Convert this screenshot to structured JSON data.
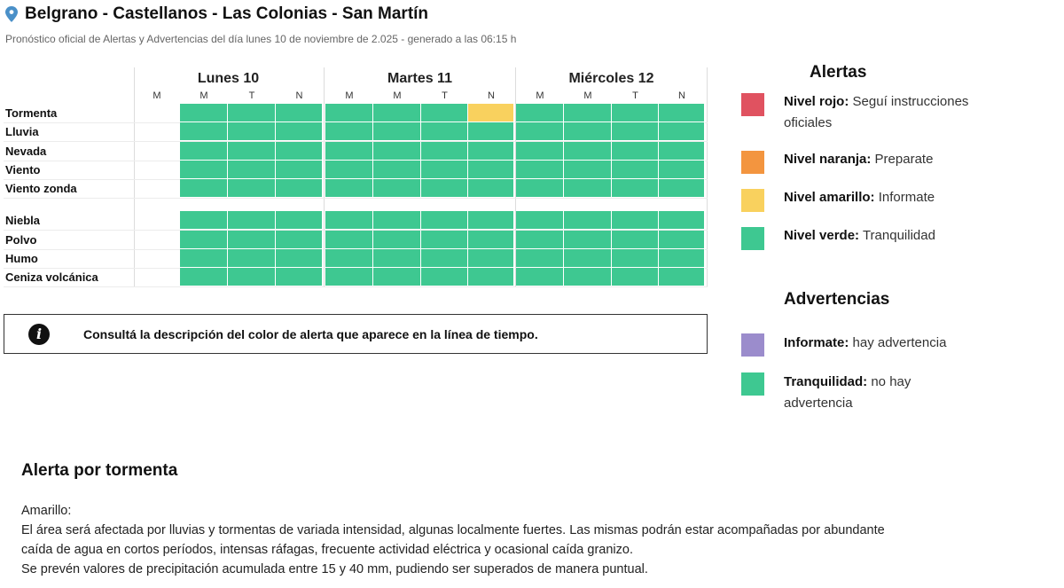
{
  "header": {
    "title": "Belgrano - Castellanos - Las Colonias - San Martín",
    "subtitle": "Pronóstico oficial de Alertas y Advertencias del día lunes 10 de noviembre de 2.025 - generado a las 06:15 h",
    "pin_icon": "map-pin-icon"
  },
  "timeline": {
    "days": [
      {
        "label": "Lunes 10",
        "slots": [
          "M",
          "M",
          "T",
          "N"
        ]
      },
      {
        "label": "Martes 11",
        "slots": [
          "M",
          "M",
          "T",
          "N"
        ]
      },
      {
        "label": "Miércoles 12",
        "slots": [
          "M",
          "M",
          "T",
          "N"
        ]
      }
    ],
    "rows": [
      {
        "label": "Tormenta",
        "levels": [
          "",
          "green",
          "green",
          "green",
          "green",
          "green",
          "green",
          "yellow",
          "green",
          "green",
          "green",
          "green"
        ]
      },
      {
        "label": "Lluvia",
        "levels": [
          "",
          "green",
          "green",
          "green",
          "green",
          "green",
          "green",
          "green",
          "green",
          "green",
          "green",
          "green"
        ]
      },
      {
        "label": "Nevada",
        "levels": [
          "",
          "green",
          "green",
          "green",
          "green",
          "green",
          "green",
          "green",
          "green",
          "green",
          "green",
          "green"
        ]
      },
      {
        "label": "Viento",
        "levels": [
          "",
          "green",
          "green",
          "green",
          "green",
          "green",
          "green",
          "green",
          "green",
          "green",
          "green",
          "green"
        ]
      },
      {
        "label": "Viento zonda",
        "levels": [
          "",
          "green",
          "green",
          "green",
          "green",
          "green",
          "green",
          "green",
          "green",
          "green",
          "green",
          "green"
        ]
      },
      {
        "label": "Niebla",
        "levels": [
          "",
          "green",
          "green",
          "green",
          "green",
          "green",
          "green",
          "green",
          "green",
          "green",
          "green",
          "green"
        ]
      },
      {
        "label": "Polvo",
        "levels": [
          "",
          "green",
          "green",
          "green",
          "green",
          "green",
          "green",
          "green",
          "green",
          "green",
          "green",
          "green"
        ]
      },
      {
        "label": "Humo",
        "levels": [
          "",
          "green",
          "green",
          "green",
          "green",
          "green",
          "green",
          "green",
          "green",
          "green",
          "green",
          "green"
        ]
      },
      {
        "label": "Ceniza volcánica",
        "levels": [
          "",
          "green",
          "green",
          "green",
          "green",
          "green",
          "green",
          "green",
          "green",
          "green",
          "green",
          "green"
        ]
      }
    ]
  },
  "info": {
    "icon": "info-icon",
    "icon_glyph": "i",
    "text": "Consultá la descripción del color de alerta que aparece en la línea de tiempo."
  },
  "legend": {
    "alertas_title": "Alertas",
    "alertas": [
      {
        "name": "Nivel rojo:",
        "desc": "Seguí instrucciones oficiales",
        "color": "#e05260"
      },
      {
        "name": "Nivel naranja:",
        "desc": "Preparate",
        "color": "#f3953f"
      },
      {
        "name": "Nivel amarillo:",
        "desc": "Informate",
        "color": "#f9d15e"
      },
      {
        "name": "Nivel verde:",
        "desc": "Tranquilidad",
        "color": "#3ec891"
      }
    ],
    "advertencias_title": "Advertencias",
    "advertencias": [
      {
        "name": "Informate:",
        "desc": "hay advertencia",
        "color": "#9b8ccc"
      },
      {
        "name": "Tranquilidad:",
        "desc": "no hay advertencia",
        "color": "#3ec891"
      }
    ]
  },
  "alert_detail": {
    "title": "Alerta por tormenta",
    "level": "Amarillo:",
    "lines": [
      "El área será afectada por lluvias y tormentas de variada intensidad, algunas localmente fuertes. Las mismas podrán estar acompañadas por abundante",
      "caída de agua en cortos períodos, intensas ráfagas, frecuente actividad eléctrica y ocasional caída granizo.",
      "Se prevén valores de precipitación acumulada entre 15 y 40 mm, pudiendo ser superados de manera puntual."
    ]
  },
  "colors": {
    "green": "#3ec891",
    "yellow": "#f9d15e"
  }
}
